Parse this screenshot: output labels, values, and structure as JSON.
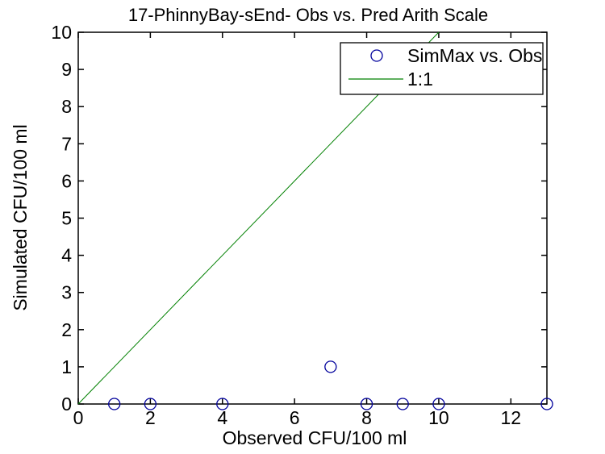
{
  "figure": {
    "title": "17-PhinnyBay-sEnd- Obs vs. Pred Arith Scale",
    "xlabel": "Observed CFU/100 ml",
    "ylabel": "Simulated CFU/100 ml"
  },
  "legend": {
    "position": "top-right",
    "entries": [
      {
        "label": "SimMax vs. Obs",
        "symbol": "circle-marker",
        "color": "#00009c"
      },
      {
        "label": "1:1",
        "symbol": "line",
        "color": "#008000"
      }
    ]
  },
  "colors": {
    "marker": "#00009c",
    "identity_line": "#008000",
    "axis": "#000000",
    "background": "#ffffff"
  },
  "chart_data": {
    "type": "scatter",
    "title": "17-PhinnyBay-sEnd- Obs vs. Pred Arith Scale",
    "xlabel": "Observed CFU/100 ml",
    "ylabel": "Simulated CFU/100 ml",
    "xlim": [
      0,
      13
    ],
    "ylim": [
      0,
      10
    ],
    "xticks": [
      0,
      2,
      4,
      6,
      8,
      10,
      12
    ],
    "yticks": [
      0,
      1,
      2,
      3,
      4,
      5,
      6,
      7,
      8,
      9,
      10
    ],
    "grid": false,
    "legend_position": "top-right",
    "series": [
      {
        "name": "SimMax vs. Obs",
        "type": "scatter",
        "marker": "circle",
        "color": "#00009c",
        "points": [
          [
            1,
            0
          ],
          [
            2,
            0
          ],
          [
            4,
            0
          ],
          [
            7,
            1
          ],
          [
            8,
            0
          ],
          [
            9,
            0
          ],
          [
            10,
            0
          ],
          [
            13,
            0
          ]
        ]
      },
      {
        "name": "1:1",
        "type": "line",
        "color": "#008000",
        "points": [
          [
            0,
            0
          ],
          [
            10,
            10
          ]
        ]
      }
    ]
  }
}
